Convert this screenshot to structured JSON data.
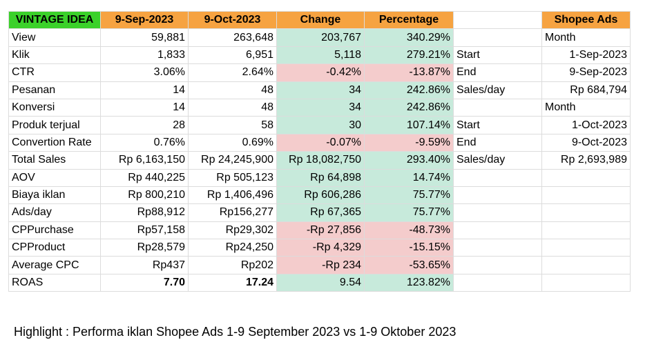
{
  "header": {
    "brand": "VINTAGE IDEA",
    "col1": "9-Sep-2023",
    "col2": "9-Oct-2023",
    "col3": "Change",
    "col4": "Percentage",
    "col5": "",
    "col6": "Shopee Ads"
  },
  "rows": [
    {
      "label": "View",
      "a": "59,881",
      "b": "263,648",
      "change": "203,767",
      "pct": "340.29%",
      "side_label": "",
      "side_value": "Month",
      "tone": "pos"
    },
    {
      "label": "Klik",
      "a": "1,833",
      "b": "6,951",
      "change": "5,118",
      "pct": "279.21%",
      "side_label": "Start",
      "side_value": "1-Sep-2023",
      "tone": "pos"
    },
    {
      "label": "CTR",
      "a": "3.06%",
      "b": "2.64%",
      "change": "-0.42%",
      "pct": "-13.87%",
      "side_label": "End",
      "side_value": "9-Sep-2023",
      "tone": "neg"
    },
    {
      "label": "Pesanan",
      "a": "14",
      "b": "48",
      "change": "34",
      "pct": "242.86%",
      "side_label": "Sales/day",
      "side_value": "Rp  684,794",
      "tone": "pos"
    },
    {
      "label": "Konversi",
      "a": "14",
      "b": "48",
      "change": "34",
      "pct": "242.86%",
      "side_label": "",
      "side_value": "Month",
      "tone": "pos"
    },
    {
      "label": "Produk terjual",
      "a": "28",
      "b": "58",
      "change": "30",
      "pct": "107.14%",
      "side_label": "Start",
      "side_value": "1-Oct-2023",
      "tone": "pos"
    },
    {
      "label": "Convertion Rate",
      "a": "0.76%",
      "b": "0.69%",
      "change": "-0.07%",
      "pct": "-9.59%",
      "side_label": "End",
      "side_value": "9-Oct-2023",
      "tone": "neg"
    },
    {
      "label": "Total Sales",
      "a": "Rp  6,163,150",
      "b": "Rp  24,245,900",
      "change": "Rp  18,082,750",
      "pct": "293.40%",
      "side_label": "Sales/day",
      "side_value": "Rp  2,693,989",
      "tone": "pos"
    },
    {
      "label": "AOV",
      "a": "Rp  440,225",
      "b": "Rp  505,123",
      "change": "Rp  64,898",
      "pct": "14.74%",
      "side_label": "",
      "side_value": "",
      "tone": "pos"
    },
    {
      "label": "Biaya iklan",
      "a": "Rp  800,210",
      "b": "Rp  1,406,496",
      "change": "Rp  606,286",
      "pct": "75.77%",
      "side_label": "",
      "side_value": "",
      "tone": "pos"
    },
    {
      "label": "Ads/day",
      "a": "Rp88,912",
      "b": "Rp156,277",
      "change": "Rp  67,365",
      "pct": "75.77%",
      "side_label": "",
      "side_value": "",
      "tone": "pos"
    },
    {
      "label": "CPPurchase",
      "a": "Rp57,158",
      "b": "Rp29,302",
      "change": "-Rp  27,856",
      "pct": "-48.73%",
      "side_label": "",
      "side_value": "",
      "tone": "neg"
    },
    {
      "label": "CPProduct",
      "a": "Rp28,579",
      "b": "Rp24,250",
      "change": "-Rp  4,329",
      "pct": "-15.15%",
      "side_label": "",
      "side_value": "",
      "tone": "neg"
    },
    {
      "label": "Average CPC",
      "a": "Rp437",
      "b": "Rp202",
      "change": "-Rp  234",
      "pct": "-53.65%",
      "side_label": "",
      "side_value": "",
      "tone": "neg"
    },
    {
      "label": "ROAS",
      "a": "7.70",
      "b": "17.24",
      "change": "9.54",
      "pct": "123.82%",
      "side_label": "",
      "side_value": "",
      "tone": "pos",
      "bold_values": true
    }
  ],
  "caption": "Highlight : Performa iklan Shopee Ads 1-9 September 2023 vs 1-9 Oktober 2023",
  "colors": {
    "brand_header": "#3bd12a",
    "header": "#f6a341",
    "positive_fill": "#c7eadb",
    "negative_fill": "#f4cccc",
    "grid": "#dcdcdc"
  }
}
